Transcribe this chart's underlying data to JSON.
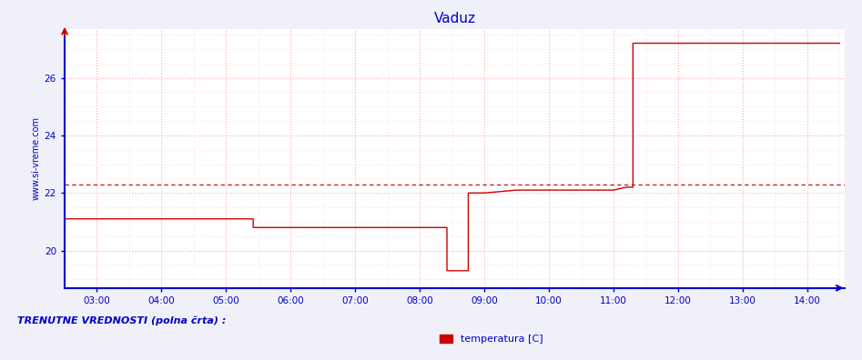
{
  "title": "Vaduz",
  "title_color": "#0000cc",
  "bg_color": "#f0f0f8",
  "plot_bg_color": "#ffffff",
  "line_color": "#cc0000",
  "axis_color": "#0000cc",
  "grid_major_color": "#ffaaaa",
  "grid_minor_color": "#ffcccc",
  "avg_line_color": "#cc0000",
  "avg_value": 22.3,
  "ylabel_text": "www.si-vreme.com",
  "ylabel_color": "#0000cc",
  "xlabel_color": "#0000cc",
  "footer_text": "TRENUTNE VREDNOSTI (polna črta) :",
  "legend_label": "temperatura [C]",
  "legend_color": "#cc0000",
  "xlim_min": 2.5,
  "xlim_max": 14.58,
  "ylim_min": 18.7,
  "ylim_max": 27.7,
  "yticks": [
    20,
    22,
    24,
    26
  ],
  "xticks": [
    3,
    4,
    5,
    6,
    7,
    8,
    9,
    10,
    11,
    12,
    13,
    14
  ],
  "xtick_labels": [
    "03:00",
    "04:00",
    "05:00",
    "06:00",
    "07:00",
    "08:00",
    "09:00",
    "10:00",
    "11:00",
    "12:00",
    "13:00",
    "14:00"
  ],
  "time_data": [
    2.5,
    3.0,
    3.5,
    4.0,
    4.5,
    5.0,
    5.42,
    5.4201,
    5.5,
    5.8,
    6.0,
    6.5,
    7.0,
    7.5,
    7.9,
    8.0,
    8.42,
    8.4201,
    8.5,
    8.55,
    8.6,
    8.7,
    8.75,
    8.7501,
    9.0,
    9.5,
    10.0,
    10.2,
    10.4,
    10.5,
    10.6,
    10.7,
    11.0,
    11.2,
    11.3,
    11.3001,
    11.5,
    12.0,
    12.5,
    13.0,
    13.5,
    14.0,
    14.5
  ],
  "temp_data": [
    21.1,
    21.1,
    21.1,
    21.1,
    21.1,
    21.1,
    21.1,
    20.8,
    20.8,
    20.8,
    20.8,
    20.8,
    20.8,
    20.8,
    20.8,
    20.8,
    20.8,
    19.3,
    19.3,
    19.3,
    19.3,
    19.3,
    19.3,
    22.0,
    22.0,
    22.1,
    22.1,
    22.1,
    22.1,
    22.1,
    22.1,
    22.1,
    22.1,
    22.2,
    22.2,
    27.2,
    27.2,
    27.2,
    27.2,
    27.2,
    27.2,
    27.2,
    27.2
  ]
}
